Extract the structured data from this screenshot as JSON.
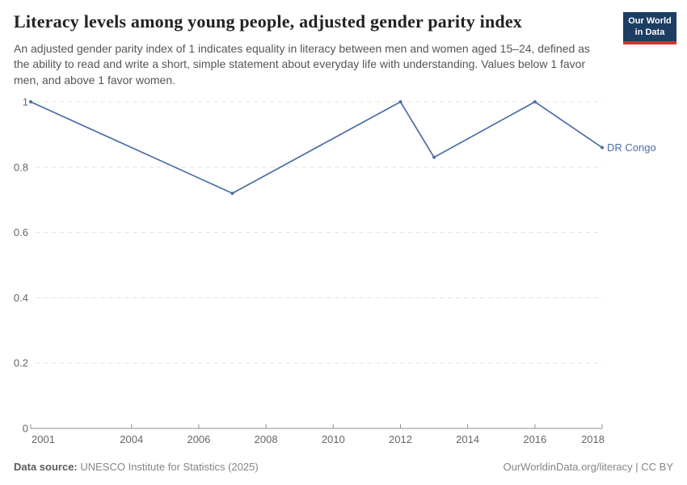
{
  "header": {
    "title": "Literacy levels among young people, adjusted gender parity index",
    "subtitle": "An adjusted gender parity index of 1 indicates equality in literacy between men and women aged 15–24, defined as the ability to read and write a short, simple statement about everyday life with understanding. Values below 1 favor men, and above 1 favor women.",
    "logo": {
      "line1": "Our World",
      "line2": "in Data",
      "bg_color": "#1d3d63",
      "accent_color": "#d0342c"
    }
  },
  "chart_data": {
    "type": "line",
    "title": "Literacy levels among young people, adjusted gender parity index",
    "xlabel": "",
    "ylabel": "",
    "x": [
      2001,
      2007,
      2012,
      2013,
      2016,
      2018
    ],
    "series": [
      {
        "name": "DR Congo",
        "color": "#4c6da5",
        "values": [
          1,
          0.72,
          1,
          0.83,
          1,
          0.86
        ]
      }
    ],
    "x_ticks": [
      2001,
      2004,
      2006,
      2008,
      2010,
      2012,
      2014,
      2016,
      2018
    ],
    "y_ticks": [
      0,
      0.2,
      0.4,
      0.6,
      0.8,
      1
    ],
    "xlim": [
      2001,
      2018
    ],
    "ylim": [
      0,
      1
    ],
    "grid": "horizontal-dashed",
    "legend_position": "line-end-label"
  },
  "footer": {
    "source_label": "Data source:",
    "source_text": " UNESCO Institute for Statistics (2025)",
    "credit": "OurWorldinData.org/literacy | CC BY"
  }
}
